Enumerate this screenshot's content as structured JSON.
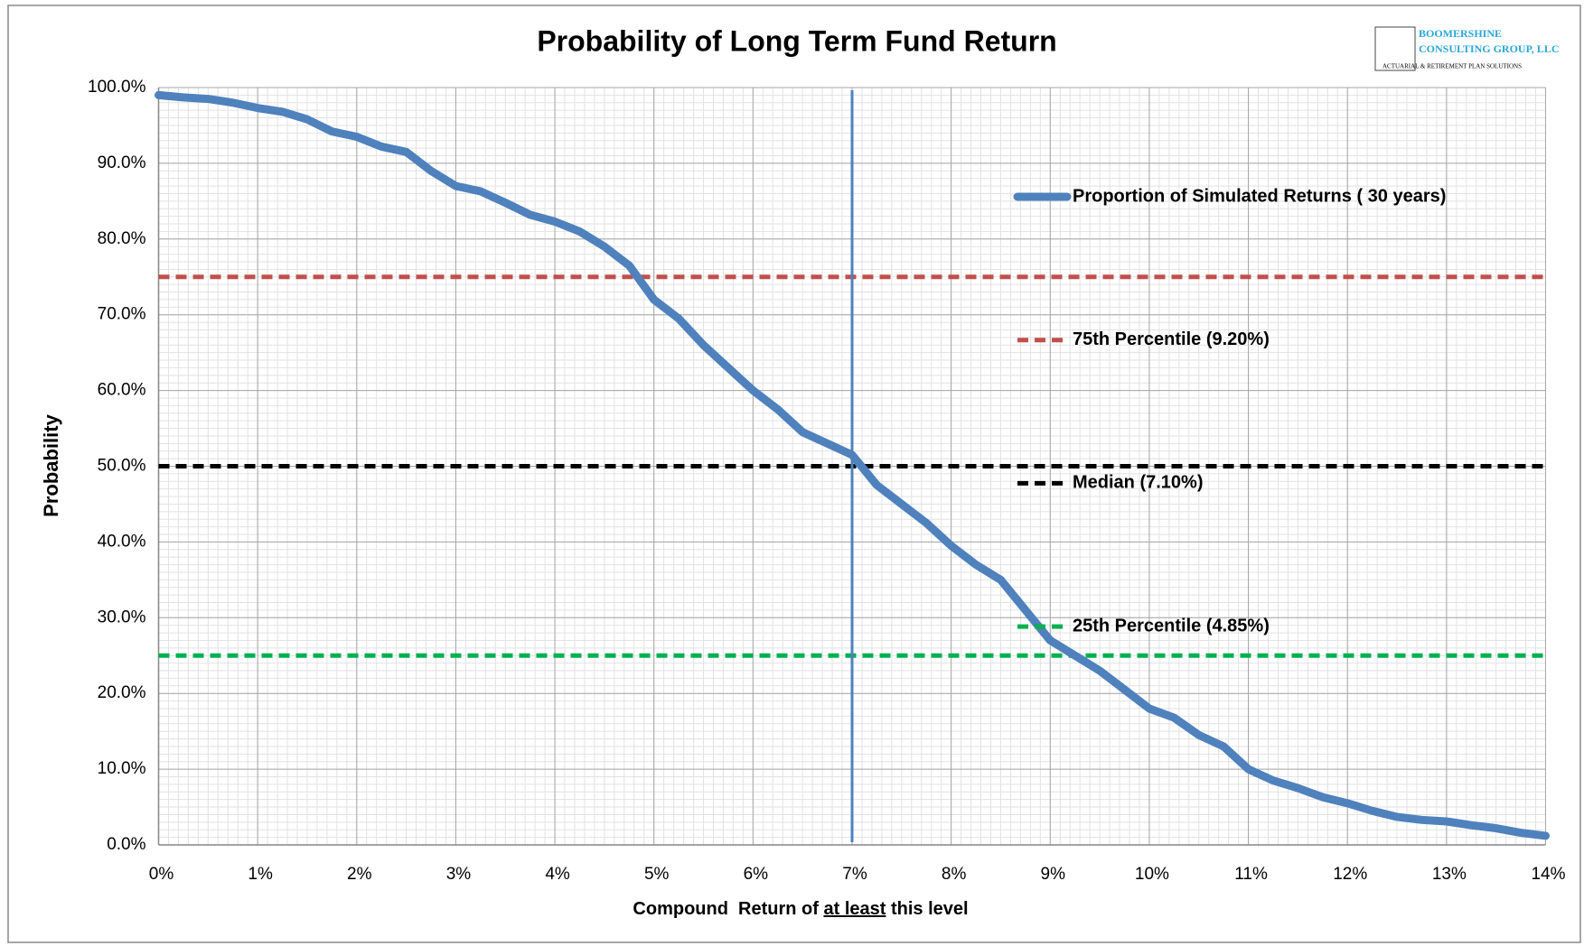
{
  "chart_data": {
    "type": "line",
    "title": "Probability of Long Term Fund Return",
    "x_label": [
      "Compound  Return of ",
      "at least",
      " this level"
    ],
    "y_label": "Probability",
    "x": [
      0,
      0.25,
      0.5,
      0.75,
      1,
      1.25,
      1.5,
      1.75,
      2,
      2.25,
      2.5,
      2.75,
      3,
      3.25,
      3.5,
      3.75,
      4,
      4.25,
      4.5,
      4.75,
      5,
      5.25,
      5.5,
      5.75,
      6,
      6.25,
      6.5,
      6.75,
      7,
      7.25,
      7.5,
      7.75,
      8,
      8.25,
      8.5,
      8.75,
      9,
      9.25,
      9.5,
      9.75,
      10,
      10.25,
      10.5,
      10.75,
      11,
      11.25,
      11.5,
      11.75,
      12,
      12.25,
      12.5,
      12.75,
      13,
      13.25,
      13.5,
      13.75,
      14
    ],
    "series": [
      {
        "name": "Proportion of Simulated Returns ( 30 years)",
        "color": "#4f81bd",
        "values": [
          99,
          98.7,
          98.5,
          98,
          97.3,
          96.8,
          95.8,
          94.2,
          93.5,
          92.2,
          91.5,
          89,
          87,
          86.3,
          84.8,
          83.2,
          82.3,
          81,
          79,
          76.5,
          72,
          69.5,
          66,
          63,
          60,
          57.5,
          54.5,
          53,
          51.5,
          47.5,
          45,
          42.5,
          39.5,
          37,
          35,
          31,
          27,
          25,
          23,
          20.5,
          18,
          16.8,
          14.5,
          13,
          10,
          8.5,
          7.5,
          6.3,
          5.5,
          4.5,
          3.7,
          3.3,
          3.1,
          2.6,
          2.2,
          1.6,
          1.2
        ]
      }
    ],
    "reference_lines": [
      {
        "name": "75th Percentile (9.20%)",
        "color": "#c0504d",
        "value": 75
      },
      {
        "name": "Median (7.10%)",
        "color": "#000000",
        "value": 50
      },
      {
        "name": "25th Percentile (4.85%)",
        "color": "#00b050",
        "value": 25
      }
    ],
    "vline": {
      "x": 7,
      "color": "#4f81bd"
    },
    "xlim": [
      0,
      14
    ],
    "ylim": [
      0,
      100
    ],
    "xticks": [
      {
        "value": 0,
        "label": "0%"
      },
      {
        "value": 1,
        "label": "1%"
      },
      {
        "value": 2,
        "label": "2%"
      },
      {
        "value": 3,
        "label": "3%"
      },
      {
        "value": 4,
        "label": "4%"
      },
      {
        "value": 5,
        "label": "5%"
      },
      {
        "value": 6,
        "label": "6%"
      },
      {
        "value": 7,
        "label": "7%"
      },
      {
        "value": 8,
        "label": "8%"
      },
      {
        "value": 9,
        "label": "9%"
      },
      {
        "value": 10,
        "label": "10%"
      },
      {
        "value": 11,
        "label": "11%"
      },
      {
        "value": 12,
        "label": "12%"
      },
      {
        "value": 13,
        "label": "13%"
      },
      {
        "value": 14,
        "label": "14%"
      }
    ],
    "yticks": [
      {
        "value": 0,
        "label": "0.0%"
      },
      {
        "value": 10,
        "label": "10.0%"
      },
      {
        "value": 20,
        "label": "20.0%"
      },
      {
        "value": 30,
        "label": "30.0%"
      },
      {
        "value": 40,
        "label": "40.0%"
      },
      {
        "value": 50,
        "label": "50.0%"
      },
      {
        "value": 60,
        "label": "60.0%"
      },
      {
        "value": 70,
        "label": "70.0%"
      },
      {
        "value": 80,
        "label": "80.0%"
      },
      {
        "value": 90,
        "label": "90.0%"
      },
      {
        "value": 100,
        "label": "100.0%"
      }
    ],
    "grid": true,
    "minor_xstep": 0.1,
    "minor_ystep": 1
  },
  "logo": {
    "line1": "BOOMERSHINE",
    "line2": "CONSULTING GROUP, LLC",
    "tagline": "ACTUARIAL & RETIREMENT PLAN SOLUTIONS"
  }
}
